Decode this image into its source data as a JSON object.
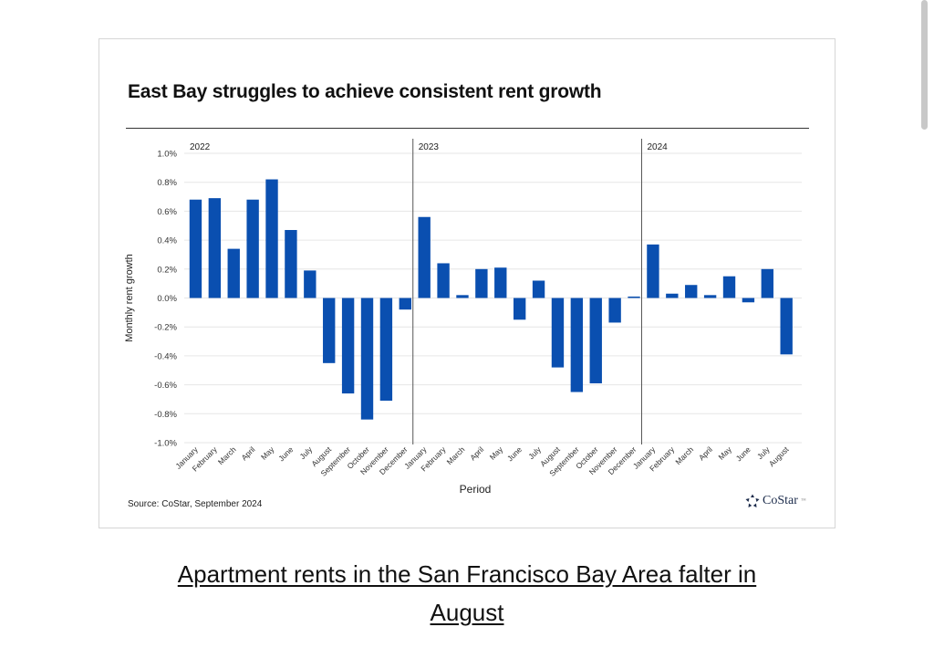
{
  "caption": {
    "line1": "Apartment rents in the San Francisco Bay Area falter in",
    "line2": "August"
  },
  "source": "Source: CoStar, September 2024",
  "logo": {
    "icon": "costar-star-icon",
    "text": "CoStar",
    "mark": "™"
  },
  "colors": {
    "bar": "#0a4fb0",
    "grid": "#e6e6e6",
    "divider": "#555555"
  },
  "chart_data": {
    "type": "bar",
    "title": "East Bay struggles to achieve consistent rent growth",
    "xlabel": "Period",
    "ylabel": "Monthly rent growth",
    "ylim": [
      -1.0,
      1.0
    ],
    "yticks": [
      "1.0%",
      "0.8%",
      "0.6%",
      "0.4%",
      "0.2%",
      "0.0%",
      "-0.2%",
      "-0.4%",
      "-0.6%",
      "-0.8%",
      "-1.0%"
    ],
    "ytick_values": [
      1.0,
      0.8,
      0.6,
      0.4,
      0.2,
      0.0,
      -0.2,
      -0.4,
      -0.6,
      -0.8,
      -1.0
    ],
    "grid": true,
    "unit": "%",
    "groups": [
      {
        "year": "2022",
        "categories": [
          "January",
          "February",
          "March",
          "April",
          "May",
          "June",
          "July",
          "August",
          "September",
          "October",
          "November",
          "December"
        ],
        "values": [
          0.68,
          0.69,
          0.34,
          0.68,
          0.82,
          0.47,
          0.19,
          -0.45,
          -0.66,
          -0.84,
          -0.71,
          -0.08
        ]
      },
      {
        "year": "2023",
        "categories": [
          "January",
          "February",
          "March",
          "April",
          "May",
          "June",
          "July",
          "August",
          "September",
          "October",
          "November",
          "December"
        ],
        "values": [
          0.56,
          0.24,
          0.02,
          0.2,
          0.21,
          -0.15,
          0.12,
          -0.48,
          -0.65,
          -0.59,
          -0.17,
          0.01
        ]
      },
      {
        "year": "2024",
        "categories": [
          "January",
          "February",
          "March",
          "April",
          "May",
          "June",
          "July",
          "August"
        ],
        "values": [
          0.37,
          0.03,
          0.09,
          0.02,
          0.15,
          -0.03,
          0.2,
          -0.39
        ]
      }
    ]
  }
}
